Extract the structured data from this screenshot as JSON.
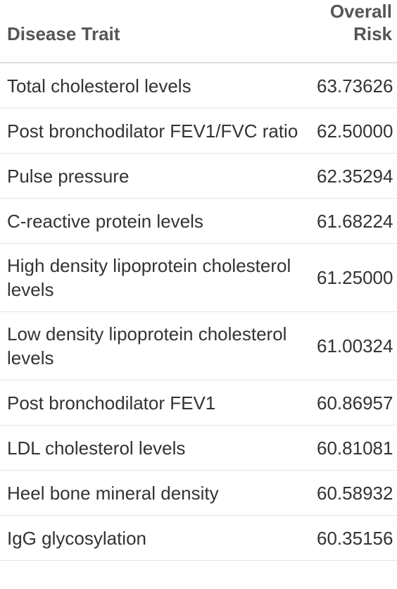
{
  "table": {
    "headers": {
      "trait": "Disease Trait",
      "risk_line1": "Overall",
      "risk_line2": "Risk"
    },
    "rows": [
      {
        "trait": "Total cholesterol levels",
        "risk": "63.73626"
      },
      {
        "trait": "Post bronchodilator FEV1/FVC ratio",
        "risk": "62.50000"
      },
      {
        "trait": "Pulse pressure",
        "risk": "62.35294"
      },
      {
        "trait": "C-reactive protein levels",
        "risk": "61.68224"
      },
      {
        "trait": "High density lipoprotein cholesterol levels",
        "risk": "61.25000"
      },
      {
        "trait": "Low density lipoprotein cholesterol levels",
        "risk": "61.00324"
      },
      {
        "trait": "Post bronchodilator FEV1",
        "risk": "60.86957"
      },
      {
        "trait": "LDL cholesterol levels",
        "risk": "60.81081"
      },
      {
        "trait": "Heel bone mineral density",
        "risk": "60.58932"
      },
      {
        "trait": "IgG glycosylation",
        "risk": "60.35156"
      }
    ]
  }
}
